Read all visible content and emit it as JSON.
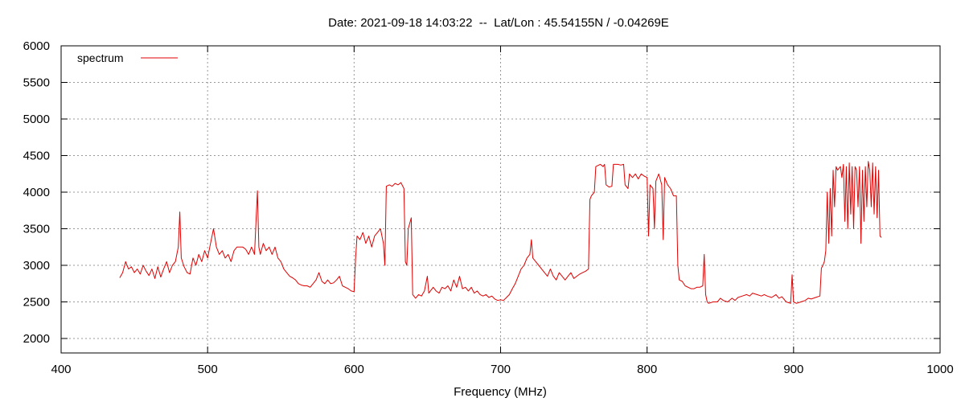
{
  "chart_data": {
    "type": "line",
    "title": "Date: 2021-09-18 14:03:22  --  Lat/Lon : 45.54155N / -0.04269E",
    "xlabel": "Frequency (MHz)",
    "ylabel": "",
    "xlim": [
      400,
      1000
    ],
    "ylim": [
      1800,
      6000
    ],
    "xticks": [
      400,
      500,
      600,
      700,
      800,
      900,
      1000
    ],
    "yticks": [
      2000,
      2500,
      3000,
      3500,
      4000,
      4500,
      5000,
      5500,
      6000
    ],
    "grid": true,
    "legend": "top-left",
    "series": [
      {
        "name": "spectrum",
        "color": "#e00000",
        "points": [
          [
            440,
            2830
          ],
          [
            442,
            2900
          ],
          [
            444,
            3050
          ],
          [
            446,
            2950
          ],
          [
            448,
            2980
          ],
          [
            450,
            2900
          ],
          [
            452,
            2950
          ],
          [
            454,
            2880
          ],
          [
            456,
            3000
          ],
          [
            458,
            2920
          ],
          [
            460,
            2860
          ],
          [
            462,
            2950
          ],
          [
            464,
            2820
          ],
          [
            466,
            2980
          ],
          [
            468,
            2840
          ],
          [
            470,
            2950
          ],
          [
            472,
            3050
          ],
          [
            474,
            2900
          ],
          [
            476,
            3000
          ],
          [
            478,
            3050
          ],
          [
            480,
            3250
          ],
          [
            481,
            3730
          ],
          [
            482,
            3100
          ],
          [
            484,
            2980
          ],
          [
            486,
            2900
          ],
          [
            488,
            2880
          ],
          [
            490,
            3100
          ],
          [
            492,
            3000
          ],
          [
            494,
            3150
          ],
          [
            496,
            3050
          ],
          [
            498,
            3200
          ],
          [
            500,
            3100
          ],
          [
            502,
            3300
          ],
          [
            504,
            3500
          ],
          [
            506,
            3250
          ],
          [
            508,
            3150
          ],
          [
            510,
            3200
          ],
          [
            512,
            3100
          ],
          [
            514,
            3150
          ],
          [
            516,
            3050
          ],
          [
            518,
            3200
          ],
          [
            520,
            3250
          ],
          [
            522,
            3250
          ],
          [
            524,
            3250
          ],
          [
            526,
            3220
          ],
          [
            528,
            3150
          ],
          [
            530,
            3250
          ],
          [
            532,
            3150
          ],
          [
            534,
            4020
          ],
          [
            535,
            3250
          ],
          [
            536,
            3150
          ],
          [
            538,
            3300
          ],
          [
            540,
            3200
          ],
          [
            542,
            3250
          ],
          [
            544,
            3150
          ],
          [
            546,
            3250
          ],
          [
            548,
            3100
          ],
          [
            550,
            3050
          ],
          [
            552,
            2950
          ],
          [
            554,
            2900
          ],
          [
            556,
            2850
          ],
          [
            558,
            2830
          ],
          [
            560,
            2800
          ],
          [
            562,
            2750
          ],
          [
            564,
            2730
          ],
          [
            566,
            2720
          ],
          [
            568,
            2720
          ],
          [
            570,
            2700
          ],
          [
            572,
            2750
          ],
          [
            574,
            2800
          ],
          [
            576,
            2900
          ],
          [
            578,
            2780
          ],
          [
            580,
            2750
          ],
          [
            582,
            2800
          ],
          [
            584,
            2750
          ],
          [
            586,
            2760
          ],
          [
            588,
            2800
          ],
          [
            590,
            2850
          ],
          [
            592,
            2720
          ],
          [
            594,
            2700
          ],
          [
            596,
            2680
          ],
          [
            598,
            2650
          ],
          [
            600,
            2640
          ],
          [
            601,
            3100
          ],
          [
            602,
            3400
          ],
          [
            604,
            3350
          ],
          [
            606,
            3450
          ],
          [
            608,
            3300
          ],
          [
            610,
            3400
          ],
          [
            612,
            3250
          ],
          [
            614,
            3400
          ],
          [
            616,
            3450
          ],
          [
            618,
            3500
          ],
          [
            620,
            3300
          ],
          [
            621,
            3000
          ],
          [
            622,
            4080
          ],
          [
            624,
            4100
          ],
          [
            626,
            4080
          ],
          [
            628,
            4120
          ],
          [
            630,
            4100
          ],
          [
            632,
            4130
          ],
          [
            634,
            4050
          ],
          [
            635,
            3050
          ],
          [
            636,
            3000
          ],
          [
            637,
            3500
          ],
          [
            639,
            3650
          ],
          [
            640,
            2600
          ],
          [
            642,
            2550
          ],
          [
            644,
            2600
          ],
          [
            646,
            2580
          ],
          [
            648,
            2650
          ],
          [
            650,
            2850
          ],
          [
            651,
            2620
          ],
          [
            654,
            2700
          ],
          [
            656,
            2650
          ],
          [
            658,
            2620
          ],
          [
            660,
            2700
          ],
          [
            662,
            2680
          ],
          [
            664,
            2720
          ],
          [
            666,
            2650
          ],
          [
            668,
            2800
          ],
          [
            670,
            2700
          ],
          [
            672,
            2850
          ],
          [
            674,
            2680
          ],
          [
            676,
            2700
          ],
          [
            678,
            2650
          ],
          [
            680,
            2700
          ],
          [
            682,
            2620
          ],
          [
            684,
            2650
          ],
          [
            686,
            2600
          ],
          [
            688,
            2580
          ],
          [
            690,
            2600
          ],
          [
            692,
            2560
          ],
          [
            694,
            2580
          ],
          [
            696,
            2540
          ],
          [
            698,
            2520
          ],
          [
            700,
            2530
          ],
          [
            702,
            2520
          ],
          [
            704,
            2560
          ],
          [
            706,
            2600
          ],
          [
            708,
            2680
          ],
          [
            710,
            2750
          ],
          [
            712,
            2850
          ],
          [
            714,
            2950
          ],
          [
            716,
            3000
          ],
          [
            718,
            3100
          ],
          [
            720,
            3150
          ],
          [
            721,
            3350
          ],
          [
            722,
            3100
          ],
          [
            724,
            3050
          ],
          [
            726,
            3000
          ],
          [
            728,
            2950
          ],
          [
            730,
            2900
          ],
          [
            732,
            2850
          ],
          [
            734,
            2950
          ],
          [
            736,
            2850
          ],
          [
            738,
            2800
          ],
          [
            740,
            2900
          ],
          [
            742,
            2850
          ],
          [
            744,
            2800
          ],
          [
            746,
            2850
          ],
          [
            748,
            2900
          ],
          [
            750,
            2820
          ],
          [
            752,
            2850
          ],
          [
            754,
            2880
          ],
          [
            756,
            2900
          ],
          [
            758,
            2920
          ],
          [
            760,
            2950
          ],
          [
            761,
            3900
          ],
          [
            762,
            3950
          ],
          [
            764,
            4000
          ],
          [
            765,
            4350
          ],
          [
            768,
            4380
          ],
          [
            770,
            4350
          ],
          [
            771,
            4380
          ],
          [
            772,
            4100
          ],
          [
            774,
            4070
          ],
          [
            776,
            4080
          ],
          [
            777,
            4380
          ],
          [
            780,
            4380
          ],
          [
            782,
            4370
          ],
          [
            784,
            4380
          ],
          [
            785,
            4100
          ],
          [
            787,
            4050
          ],
          [
            788,
            4250
          ],
          [
            790,
            4200
          ],
          [
            792,
            4250
          ],
          [
            794,
            4180
          ],
          [
            796,
            4250
          ],
          [
            798,
            4220
          ],
          [
            800,
            4200
          ],
          [
            801,
            3400
          ],
          [
            802,
            4100
          ],
          [
            804,
            4050
          ],
          [
            805,
            3500
          ],
          [
            806,
            4150
          ],
          [
            808,
            4250
          ],
          [
            810,
            4100
          ],
          [
            811,
            3350
          ],
          [
            812,
            4200
          ],
          [
            814,
            4100
          ],
          [
            816,
            4050
          ],
          [
            818,
            3950
          ],
          [
            820,
            3950
          ],
          [
            821,
            3000
          ],
          [
            822,
            2800
          ],
          [
            824,
            2780
          ],
          [
            826,
            2720
          ],
          [
            828,
            2700
          ],
          [
            830,
            2680
          ],
          [
            832,
            2680
          ],
          [
            834,
            2700
          ],
          [
            836,
            2700
          ],
          [
            838,
            2720
          ],
          [
            839,
            3150
          ],
          [
            840,
            2600
          ],
          [
            841,
            2500
          ],
          [
            842,
            2480
          ],
          [
            845,
            2500
          ],
          [
            848,
            2500
          ],
          [
            850,
            2550
          ],
          [
            852,
            2520
          ],
          [
            855,
            2500
          ],
          [
            858,
            2550
          ],
          [
            860,
            2520
          ],
          [
            862,
            2560
          ],
          [
            865,
            2580
          ],
          [
            868,
            2600
          ],
          [
            870,
            2580
          ],
          [
            872,
            2620
          ],
          [
            875,
            2600
          ],
          [
            878,
            2580
          ],
          [
            880,
            2600
          ],
          [
            882,
            2580
          ],
          [
            885,
            2560
          ],
          [
            888,
            2600
          ],
          [
            890,
            2550
          ],
          [
            892,
            2570
          ],
          [
            895,
            2500
          ],
          [
            898,
            2480
          ],
          [
            899,
            2870
          ],
          [
            900,
            2500
          ],
          [
            902,
            2480
          ],
          [
            905,
            2500
          ],
          [
            908,
            2520
          ],
          [
            910,
            2550
          ],
          [
            912,
            2540
          ],
          [
            915,
            2560
          ],
          [
            918,
            2580
          ],
          [
            919,
            2960
          ],
          [
            920,
            3000
          ],
          [
            921,
            3050
          ],
          [
            922,
            3200
          ],
          [
            923,
            4000
          ],
          [
            924,
            3300
          ],
          [
            925,
            4050
          ],
          [
            926,
            3400
          ],
          [
            927,
            4300
          ],
          [
            928,
            3800
          ],
          [
            929,
            4350
          ],
          [
            930,
            4300
          ],
          [
            932,
            4350
          ],
          [
            933,
            4200
          ],
          [
            934,
            4380
          ],
          [
            935,
            3600
          ],
          [
            936,
            4350
          ],
          [
            937,
            3500
          ],
          [
            938,
            4400
          ],
          [
            939,
            3700
          ],
          [
            940,
            4350
          ],
          [
            941,
            3500
          ],
          [
            942,
            4350
          ],
          [
            943,
            4300
          ],
          [
            944,
            3800
          ],
          [
            945,
            4350
          ],
          [
            946,
            3300
          ],
          [
            947,
            4300
          ],
          [
            948,
            3600
          ],
          [
            949,
            4350
          ],
          [
            950,
            3800
          ],
          [
            951,
            4420
          ],
          [
            952,
            4300
          ],
          [
            953,
            3800
          ],
          [
            954,
            4400
          ],
          [
            955,
            3700
          ],
          [
            956,
            4350
          ],
          [
            957,
            3650
          ],
          [
            958,
            4300
          ],
          [
            959,
            3400
          ],
          [
            960,
            3380
          ]
        ]
      }
    ]
  }
}
